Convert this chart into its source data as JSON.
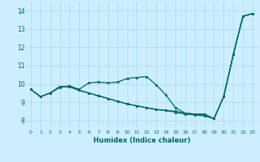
{
  "xlabel": "Humidex (Indice chaleur)",
  "bg_color": "#cceeff",
  "grid_color": "#aadddd",
  "line_color": "#006666",
  "xlim": [
    -0.5,
    23.5
  ],
  "ylim": [
    7.5,
    14.5
  ],
  "xticks": [
    0,
    1,
    2,
    3,
    4,
    5,
    6,
    7,
    8,
    9,
    10,
    11,
    12,
    13,
    14,
    15,
    16,
    17,
    18,
    19,
    20,
    21,
    22,
    23
  ],
  "yticks": [
    8,
    9,
    10,
    11,
    12,
    13,
    14
  ],
  "series1": [
    9.7,
    9.3,
    9.5,
    9.8,
    9.9,
    9.7,
    10.05,
    10.1,
    10.05,
    10.1,
    10.3,
    10.35,
    10.4,
    9.95,
    9.4,
    8.7,
    8.4,
    8.35,
    8.35,
    8.1,
    9.3,
    11.6,
    13.7,
    13.85
  ],
  "series2": [
    9.7,
    9.3,
    9.5,
    9.85,
    9.85,
    9.65,
    9.5,
    9.35,
    9.2,
    9.05,
    8.9,
    8.8,
    8.7,
    8.6,
    8.55,
    8.45,
    8.35,
    8.3,
    8.25,
    8.1,
    9.3,
    11.6,
    13.7,
    13.85
  ],
  "series3": [
    9.7,
    9.3,
    9.5,
    9.85,
    9.85,
    9.65,
    9.5,
    9.35,
    9.2,
    9.05,
    8.9,
    8.8,
    8.7,
    8.6,
    8.55,
    8.5,
    8.4,
    8.35,
    8.3,
    8.1,
    9.3,
    11.6,
    13.7,
    13.85
  ]
}
